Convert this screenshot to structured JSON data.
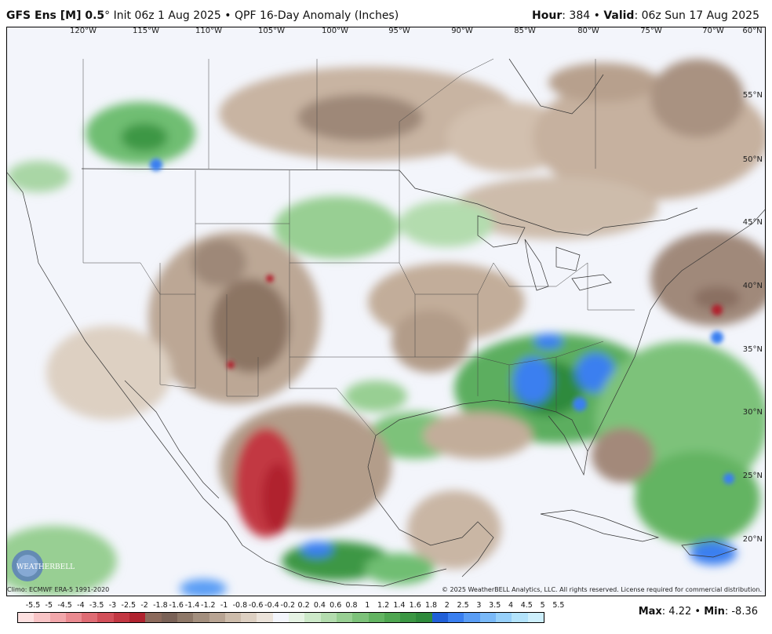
{
  "header": {
    "model": "GFS Ens [M] 0.5",
    "degree": "°",
    "init": " Init 06z 1 Aug 2025",
    "sep": " • ",
    "product": "QPF 16-Day Anomaly (Inches)",
    "hour_label": "Hour",
    "hour_value": ": 384 • ",
    "valid_label": "Valid",
    "valid_value": ": 06z Sun 17 Aug 2025"
  },
  "lon_labels": [
    "120°W",
    "115°W",
    "110°W",
    "105°W",
    "100°W",
    "95°W",
    "90°W",
    "85°W",
    "80°W",
    "75°W",
    "70°W",
    "60°N"
  ],
  "lat_labels": [
    "55°N",
    "50°N",
    "45°N",
    "40°N",
    "35°N",
    "30°N",
    "25°N",
    "20°N"
  ],
  "footer": {
    "climo": "Climo: ECMWF ERA-5 1991-2020",
    "copyright": "© 2025 WeatherBELL Analytics, LLC. All rights reserved. License required for commercial distribution.",
    "logo_text": "WEATHERBELL"
  },
  "legend": {
    "ticks": [
      "-5.5",
      "-5",
      "-4.5",
      "-4",
      "-3.5",
      "-3",
      "-2.5",
      "-2",
      "-1.8",
      "-1.6",
      "-1.4",
      "-1.2",
      "-1",
      "-0.8",
      "-0.6",
      "-0.4",
      "-0.2",
      "0.2",
      "0.4",
      "0.6",
      "0.8",
      "1",
      "1.2",
      "1.4",
      "1.6",
      "1.8",
      "2",
      "2.5",
      "3",
      "3.5",
      "4",
      "4.5",
      "5",
      "5.5"
    ],
    "colors": [
      "#fde0e0",
      "#f8c4c6",
      "#f2a7ab",
      "#ea8a90",
      "#df6c74",
      "#d24f59",
      "#c23742",
      "#b0232f",
      "#8c6a5c",
      "#7a6257",
      "#8e7868",
      "#a38f7e",
      "#b8a493",
      "#cdbcab",
      "#ddd0c2",
      "#ebe3da",
      "#f3f5fb",
      "#e6f3e4",
      "#cde9c9",
      "#b3dcae",
      "#98cf93",
      "#7dc27a",
      "#63b462",
      "#4fa651",
      "#3c9744",
      "#2f8a3c",
      "#2160d8",
      "#3a7ff0",
      "#5a9df5",
      "#7ab9f8",
      "#97d0fa",
      "#b3e3fb",
      "#cdeffc"
    ],
    "max_label": "Max",
    "max_value": ": 4.22 • ",
    "min_label": "Min",
    "min_value": ": -8.36"
  }
}
